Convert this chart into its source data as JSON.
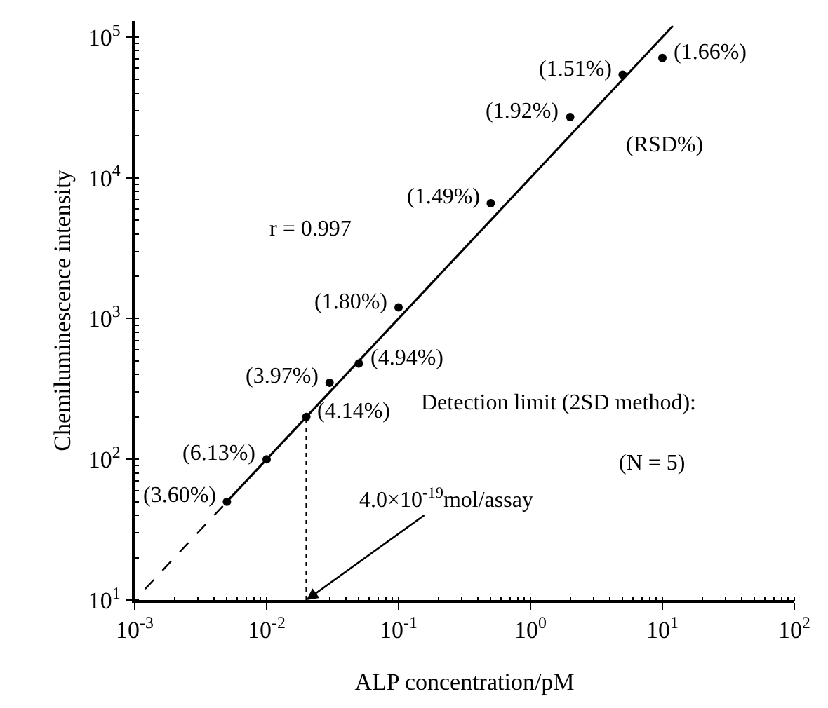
{
  "chart_data": {
    "type": "scatter",
    "xlabel": "ALP concentration/pM",
    "ylabel": "Chemiluminescence intensity",
    "log": "xy",
    "xlim": [
      0.001,
      100
    ],
    "ylim": [
      10,
      130000
    ],
    "xticks": [
      {
        "value": 0.001,
        "label": "10$^{-3}$"
      },
      {
        "value": 0.01,
        "label": "10$^{-2}$"
      },
      {
        "value": 0.1,
        "label": "10$^{-1}$"
      },
      {
        "value": 1,
        "label": "10$^{0}$"
      },
      {
        "value": 10,
        "label": "10$^{1}$"
      },
      {
        "value": 100,
        "label": "10$^{2}$"
      }
    ],
    "yticks": [
      {
        "value": 10,
        "label": "10$^{1}$"
      },
      {
        "value": 100,
        "label": "10$^{2}$"
      },
      {
        "value": 1000,
        "label": "10$^{3}$"
      },
      {
        "value": 10000,
        "label": "10$^{4}$"
      },
      {
        "value": 100000,
        "label": "10$^{5}$"
      }
    ],
    "series": [
      {
        "color": "#000000",
        "marker": "circle",
        "x": [
          0.005,
          0.01,
          0.02,
          0.03,
          0.05,
          0.1,
          0.5,
          2,
          5,
          10
        ],
        "values": [
          50,
          100,
          200,
          350,
          480,
          1200,
          6600,
          27000,
          54000,
          71000
        ]
      },
      {
        "type": "line",
        "color": "#000000",
        "line_style": "solid",
        "x": [
          0.005,
          12
        ],
        "values": [
          50,
          120000
        ]
      },
      {
        "type": "line",
        "color": "#000000",
        "line_style": "dashed",
        "x": [
          0.0012,
          0.005
        ],
        "values": [
          12,
          50
        ]
      },
      {
        "type": "line",
        "color": "#000000",
        "line_style": "dotted",
        "x": [
          0.02,
          0.02
        ],
        "values": [
          10,
          200
        ]
      }
    ],
    "annotations": [
      {
        "text": "(3.60%)",
        "x": 0.005,
        "y": 50
      },
      {
        "text": "(6.13%)",
        "x": 0.01,
        "y": 100
      },
      {
        "text": "(4.14%)",
        "x": 0.02,
        "y": 200
      },
      {
        "text": "(3.97%)",
        "x": 0.03,
        "y": 350
      },
      {
        "text": "(4.94%)",
        "x": 0.05,
        "y": 480
      },
      {
        "text": "(1.80%)",
        "x": 0.1,
        "y": 1200
      },
      {
        "text": "(1.49%)",
        "x": 0.5,
        "y": 6600
      },
      {
        "text": "(1.92%)",
        "x": 2,
        "y": 27000
      },
      {
        "text": "(1.51%)",
        "x": 5,
        "y": 54000
      },
      {
        "text": "(1.66%)",
        "x": 10,
        "y": 71000
      },
      "(RSD%)",
      "r = 0.997",
      "Detection limit (2SD method):",
      {
        "text": "4.0×10$^{-19}$mol/assay",
        "x": 0.02,
        "y": 10
      },
      "(N = 5)"
    ]
  }
}
